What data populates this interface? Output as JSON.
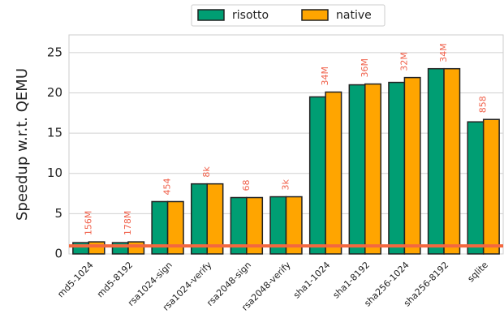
{
  "chart_data": {
    "type": "bar",
    "y_label": "Speedup w.r.t. QEMU",
    "categories": [
      "md5-1024",
      "md5-8192",
      "rsa1024-sign",
      "rsa1024-verify",
      "rsa2048-sign",
      "rsa2048-verify",
      "sha1-1024",
      "sha1-8192",
      "sha256-1024",
      "sha256-8192",
      "sqlite"
    ],
    "series": [
      {
        "name": "risotto",
        "color": "#009e73",
        "values": [
          1.4,
          1.4,
          6.5,
          8.7,
          7.0,
          7.1,
          19.5,
          21.0,
          21.3,
          23.0,
          16.4
        ]
      },
      {
        "name": "native",
        "color": "#ffa500",
        "values": [
          1.5,
          1.5,
          6.5,
          8.7,
          7.0,
          7.1,
          20.1,
          21.1,
          21.9,
          23.0,
          16.7
        ]
      }
    ],
    "annotations": [
      "156M",
      "178M",
      "454",
      "8k",
      "68",
      "3k",
      "34M",
      "36M",
      "32M",
      "34M",
      "858"
    ],
    "annotation_color": "#f0604a",
    "reference_line": 1,
    "reference_color": "#f4683f",
    "ylim": [
      0,
      27.2
    ],
    "yticks": [
      0,
      5,
      10,
      15,
      20,
      25
    ],
    "grid": true,
    "legend": "top"
  }
}
